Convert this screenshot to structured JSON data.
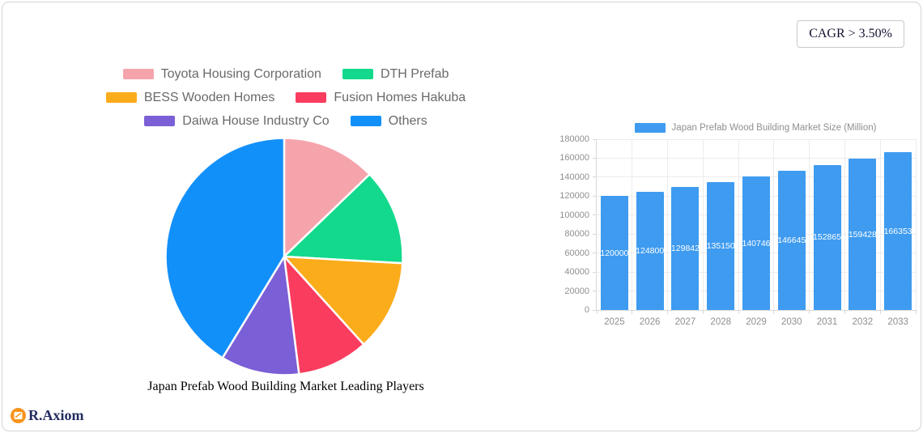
{
  "card": {
    "cagr_badge": "CAGR > 3.50%"
  },
  "brand": {
    "name": "R.Axiom",
    "logo_icon": "chart-trend-up-icon",
    "logo_color": "#f7941e"
  },
  "chart_data": [
    {
      "type": "pie",
      "title": "Japan Prefab Wood Building Market Leading Players",
      "labels": [
        "Toyota Housing Corporation",
        "DTH Prefab",
        "BESS Wooden Homes",
        "Fusion Homes Hakuba",
        "Daiwa House Industry Co",
        "Others"
      ],
      "values_percent": [
        12.8,
        13.1,
        12.4,
        9.7,
        10.7,
        41.3
      ],
      "colors": [
        "#f5a4ac",
        "#13d98c",
        "#fbac1b",
        "#fa3c5f",
        "#7b5fd6",
        "#1290fa"
      ],
      "start_angle_deg": 0,
      "direction": "clockwise",
      "legend_position": "top",
      "legend_rows": [
        [
          0,
          1
        ],
        [
          2,
          3
        ],
        [
          4,
          5
        ]
      ]
    },
    {
      "type": "bar",
      "legend_label": "Japan Prefab Wood Building Market Size (Million)",
      "categories": [
        "2025",
        "2026",
        "2027",
        "2028",
        "2029",
        "2030",
        "2031",
        "2032",
        "2033"
      ],
      "values": [
        120000,
        124800,
        129842,
        135150,
        140746,
        146645,
        152865,
        159428,
        166353
      ],
      "value_labels": [
        "120000",
        "124800",
        "129842",
        "135150",
        "140746",
        "146645",
        "152865",
        "159428",
        "166353"
      ],
      "bar_color": "#3e9bf0",
      "value_label_color": "#ffffff",
      "ylim": [
        0,
        180000
      ],
      "ytick_step": 20000,
      "ytick_labels": [
        "0",
        "20000",
        "40000",
        "60000",
        "80000",
        "100000",
        "120000",
        "140000",
        "160000",
        "180000"
      ],
      "grid": true,
      "legend_position": "top"
    }
  ]
}
